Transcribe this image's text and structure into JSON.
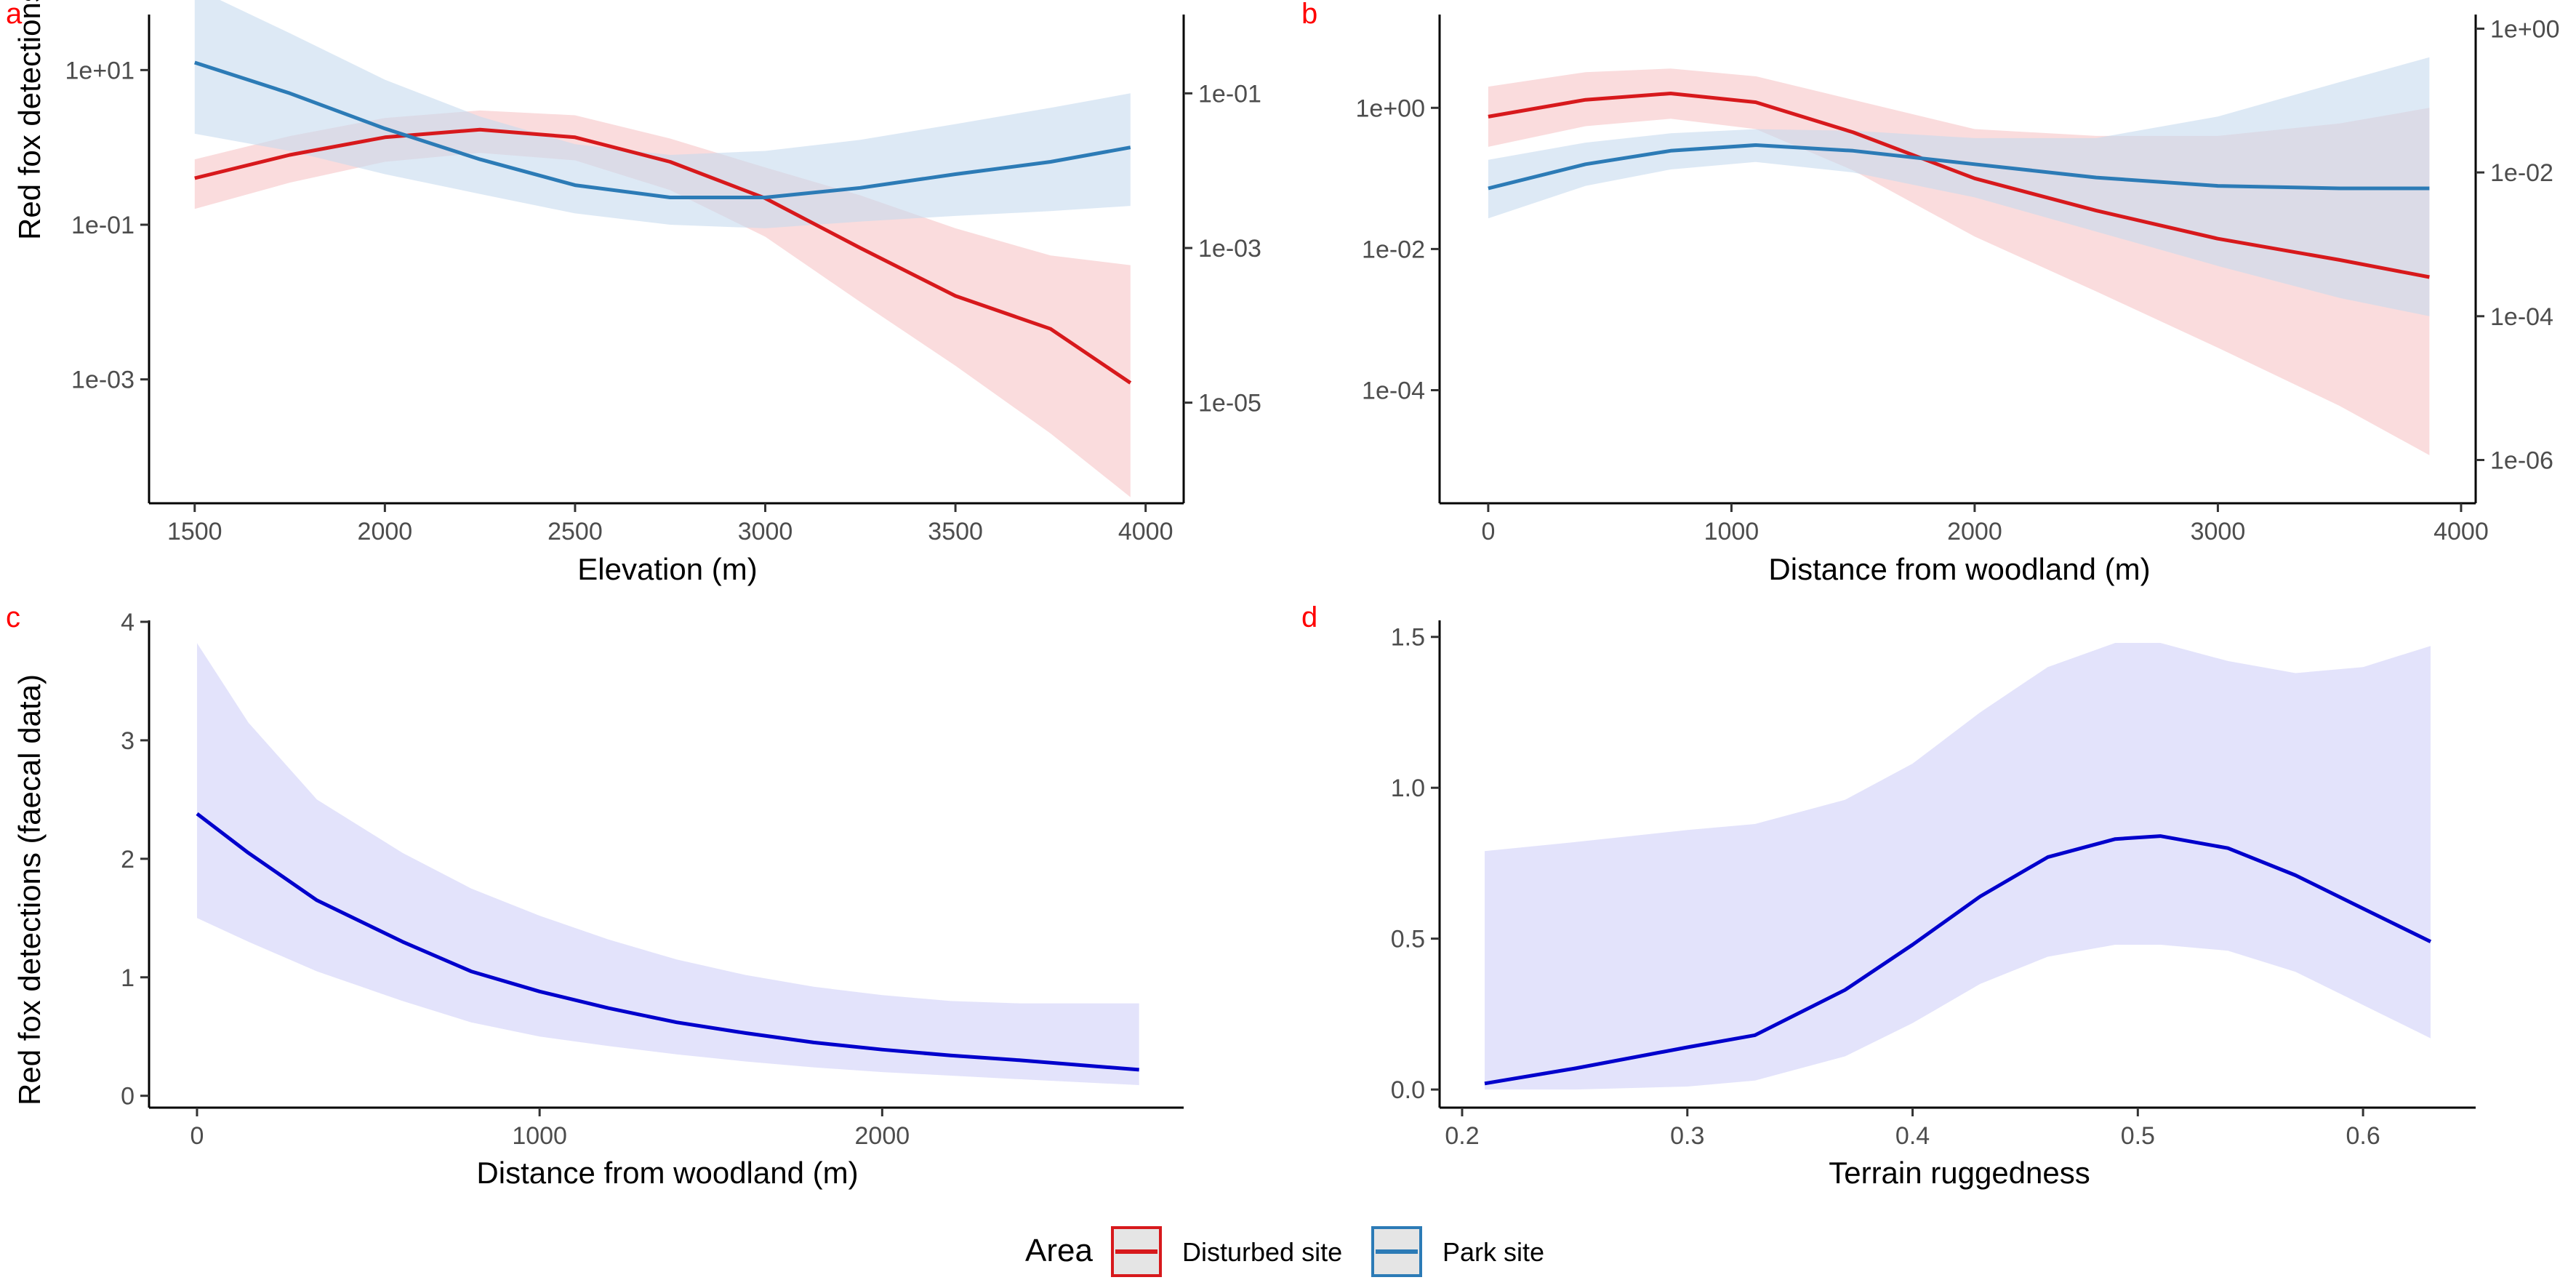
{
  "figure": {
    "ylabel_top": "Red fox detections (camera trap data)",
    "ylabel_bottom": "Red fox detections (faecal data)"
  },
  "legend": {
    "title": "Area",
    "items": [
      {
        "label": "Disturbed site",
        "color": "#d7191c"
      },
      {
        "label": "Park site",
        "color": "#2c7bb6"
      }
    ]
  },
  "colors": {
    "disturbed_line": "#d7191c",
    "disturbed_fill": "#f7c5c7",
    "park_line": "#2c7bb6",
    "park_fill": "#c6dbef",
    "faecal_line": "#0000cc",
    "faecal_fill": "#d9d9f9",
    "panel_letter": "#ff0000"
  },
  "chart_data": [
    {
      "panel": "a",
      "type": "line",
      "xlabel": "Elevation (m)",
      "ylabel": "Red fox detections (camera trap data)",
      "x_ticks": [
        1500,
        2000,
        2500,
        3000,
        3500,
        4000
      ],
      "xlim": [
        1380,
        4100
      ],
      "y_scale": "log",
      "ylim_left": [
        2.5e-05,
        50
      ],
      "y_ticks_left": [
        {
          "v": 10,
          "label": "1e+01"
        },
        {
          "v": 0.1,
          "label": "1e-01"
        },
        {
          "v": 0.001,
          "label": "1e-03"
        }
      ],
      "ylim_right": [
        5e-07,
        1.0
      ],
      "y_ticks_right": [
        {
          "v": 0.1,
          "label": "1e-01"
        },
        {
          "v": 0.001,
          "label": "1e-03"
        },
        {
          "v": 1e-05,
          "label": "1e-05"
        }
      ],
      "series": [
        {
          "name": "Disturbed site",
          "axis": "left",
          "x": [
            1500,
            1750,
            2000,
            2250,
            2500,
            2750,
            3000,
            3250,
            3500,
            3750,
            3960
          ],
          "y": [
            0.4,
            0.8,
            1.35,
            1.7,
            1.35,
            0.65,
            0.22,
            0.05,
            0.012,
            0.0045,
            0.0009
          ],
          "lower": [
            0.16,
            0.35,
            0.65,
            0.85,
            0.68,
            0.28,
            0.07,
            0.01,
            0.0015,
            0.0002,
            3e-05
          ],
          "upper": [
            0.7,
            1.4,
            2.4,
            3.0,
            2.6,
            1.3,
            0.55,
            0.24,
            0.09,
            0.04,
            0.03
          ]
        },
        {
          "name": "Park site",
          "axis": "right",
          "x": [
            1500,
            1750,
            2000,
            2250,
            2500,
            2750,
            3000,
            3250,
            3500,
            3750,
            3960
          ],
          "y": [
            0.25,
            0.1,
            0.035,
            0.014,
            0.0065,
            0.0045,
            0.0045,
            0.006,
            0.009,
            0.013,
            0.02
          ],
          "lower": [
            0.03,
            0.018,
            0.009,
            0.005,
            0.0028,
            0.002,
            0.0018,
            0.0022,
            0.0026,
            0.003,
            0.0035
          ],
          "upper": [
            2.3,
            0.6,
            0.15,
            0.05,
            0.022,
            0.016,
            0.018,
            0.025,
            0.04,
            0.065,
            0.1
          ]
        }
      ]
    },
    {
      "panel": "b",
      "type": "line",
      "xlabel": "Distance from woodland (m)",
      "x_ticks": [
        0,
        1000,
        2000,
        3000,
        4000
      ],
      "xlim": [
        -200,
        4060
      ],
      "y_scale": "log",
      "ylim_left": [
        2.5e-06,
        20
      ],
      "y_ticks_left": [
        {
          "v": 1,
          "label": "1e+00"
        },
        {
          "v": 0.01,
          "label": "1e-02"
        },
        {
          "v": 0.0001,
          "label": "1e-04"
        }
      ],
      "ylim_right": [
        2.5e-07,
        1.5
      ],
      "y_ticks_right": [
        {
          "v": 1,
          "label": "1e+00"
        },
        {
          "v": 0.01,
          "label": "1e-02"
        },
        {
          "v": 0.0001,
          "label": "1e-04"
        },
        {
          "v": 1e-06,
          "label": "1e-06"
        }
      ],
      "series": [
        {
          "name": "Disturbed site",
          "axis": "left",
          "x": [
            0,
            400,
            750,
            1100,
            1500,
            2000,
            2500,
            3000,
            3500,
            3870
          ],
          "y": [
            0.75,
            1.3,
            1.6,
            1.2,
            0.45,
            0.1,
            0.035,
            0.014,
            0.007,
            0.004
          ],
          "lower": [
            0.28,
            0.55,
            0.7,
            0.5,
            0.13,
            0.015,
            0.0025,
            0.0004,
            6e-05,
            1.2e-05
          ],
          "upper": [
            2.0,
            3.2,
            3.6,
            2.8,
            1.3,
            0.5,
            0.4,
            0.4,
            0.6,
            1.0
          ]
        },
        {
          "name": "Park site",
          "axis": "right",
          "x": [
            0,
            400,
            750,
            1100,
            1500,
            2000,
            2500,
            3000,
            3500,
            3870
          ],
          "y": [
            0.006,
            0.013,
            0.02,
            0.024,
            0.02,
            0.013,
            0.0085,
            0.0065,
            0.006,
            0.006
          ],
          "lower": [
            0.0023,
            0.0065,
            0.011,
            0.014,
            0.01,
            0.0045,
            0.0015,
            0.0005,
            0.00018,
            0.0001
          ],
          "upper": [
            0.015,
            0.026,
            0.035,
            0.04,
            0.038,
            0.03,
            0.03,
            0.06,
            0.18,
            0.4
          ]
        }
      ]
    },
    {
      "panel": "c",
      "type": "line",
      "xlabel": "Distance from woodland (m)",
      "ylabel": "Red fox detections (faecal data)",
      "x_ticks": [
        0,
        1000,
        2000
      ],
      "xlim": [
        -140,
        2880
      ],
      "y_scale": "linear",
      "ylim_left": [
        -0.1,
        4.0
      ],
      "y_ticks_left": [
        {
          "v": 0,
          "label": "0"
        },
        {
          "v": 1,
          "label": "1"
        },
        {
          "v": 2,
          "label": "2"
        },
        {
          "v": 3,
          "label": "3"
        },
        {
          "v": 4,
          "label": "4"
        }
      ],
      "series": [
        {
          "name": "",
          "axis": "left",
          "x": [
            0,
            150,
            350,
            600,
            800,
            1000,
            1200,
            1400,
            1600,
            1800,
            2000,
            2200,
            2400,
            2750
          ],
          "y": [
            2.38,
            2.05,
            1.65,
            1.3,
            1.05,
            0.88,
            0.74,
            0.62,
            0.53,
            0.45,
            0.39,
            0.34,
            0.3,
            0.22
          ],
          "lower": [
            1.5,
            1.3,
            1.05,
            0.8,
            0.62,
            0.5,
            0.42,
            0.35,
            0.29,
            0.24,
            0.2,
            0.17,
            0.14,
            0.09
          ],
          "upper": [
            3.82,
            3.15,
            2.5,
            2.05,
            1.75,
            1.52,
            1.32,
            1.15,
            1.02,
            0.92,
            0.85,
            0.8,
            0.78,
            0.78
          ]
        }
      ]
    },
    {
      "panel": "d",
      "type": "line",
      "xlabel": "Terrain ruggedness",
      "x_ticks": [
        0.2,
        0.3,
        0.4,
        0.5,
        0.6
      ],
      "xlim": [
        0.19,
        0.65
      ],
      "y_scale": "linear",
      "ylim_left": [
        -0.06,
        1.55
      ],
      "y_ticks_left": [
        {
          "v": 0,
          "label": "0.0"
        },
        {
          "v": 0.5,
          "label": "0.5"
        },
        {
          "v": 1.0,
          "label": "1.0"
        },
        {
          "v": 1.5,
          "label": "1.5"
        }
      ],
      "series": [
        {
          "name": "",
          "axis": "left",
          "x": [
            0.21,
            0.25,
            0.3,
            0.33,
            0.37,
            0.4,
            0.43,
            0.46,
            0.49,
            0.51,
            0.54,
            0.57,
            0.6,
            0.63
          ],
          "y": [
            0.02,
            0.07,
            0.14,
            0.18,
            0.33,
            0.48,
            0.64,
            0.77,
            0.83,
            0.84,
            0.8,
            0.71,
            0.6,
            0.49
          ],
          "lower": [
            0.0,
            0.0,
            0.01,
            0.03,
            0.11,
            0.22,
            0.35,
            0.44,
            0.48,
            0.48,
            0.46,
            0.39,
            0.28,
            0.17
          ],
          "upper": [
            0.79,
            0.82,
            0.86,
            0.88,
            0.96,
            1.08,
            1.25,
            1.4,
            1.48,
            1.48,
            1.42,
            1.38,
            1.4,
            1.47
          ]
        }
      ]
    }
  ]
}
